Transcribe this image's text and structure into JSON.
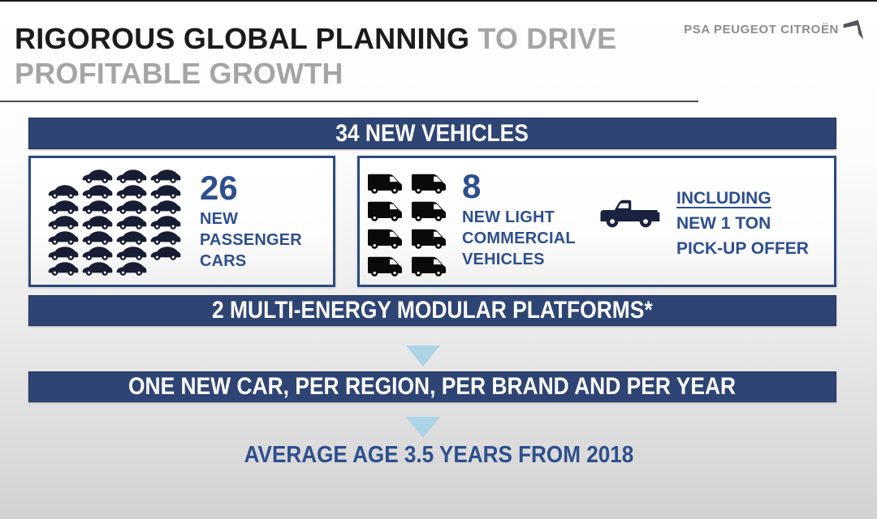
{
  "header": {
    "title_black": "RIGOROUS GLOBAL PLANNING",
    "title_gray_inline": " TO DRIVE",
    "title_line2": "PROFITABLE GROWTH",
    "logo_text": "PSA PEUGEOT CITROËN"
  },
  "banners": {
    "vehicles": "34 NEW VEHICLES",
    "platforms": "2 MULTI-ENERGY MODULAR PLATFORMS*",
    "cadence": "ONE NEW CAR, PER REGION, PER BRAND AND PER YEAR"
  },
  "passenger_cars": {
    "count": "26",
    "labels": [
      "NEW",
      "PASSENGER",
      "CARS"
    ],
    "icon_count": 26,
    "icon_rows": [
      3,
      4,
      4,
      4,
      4,
      4,
      3
    ]
  },
  "commercial_vehicles": {
    "count": "8",
    "labels": [
      "NEW LIGHT",
      "COMMERCIAL",
      "VEHICLES"
    ],
    "icon_count": 8,
    "icon_cols": 2
  },
  "pickup": {
    "line1": "INCLUDING",
    "line2": "NEW 1 TON",
    "line3": "PICK-UP OFFER"
  },
  "footer": {
    "average_age": "AVERAGE AGE 3.5 YEARS FROM 2018"
  },
  "icons": {
    "car": "passenger-car-icon",
    "van": "delivery-van-icon",
    "pickup": "pickup-truck-icon",
    "logo_mark": "psa-arrow-logo-icon",
    "down_arrow": "down-arrow-icon"
  },
  "colors": {
    "banner_navy": "#2e4474",
    "box_border_navy": "#2d4a7e",
    "text_blue": "#2d4f8e",
    "arrow_light_blue": "#abd4e6",
    "title_gray": "#a5a5a5",
    "logo_gray": "#8b8b92",
    "car_icon": "#191d33",
    "van_icon": "#0a0a0a",
    "background_bottom": "#d2d2d2"
  }
}
